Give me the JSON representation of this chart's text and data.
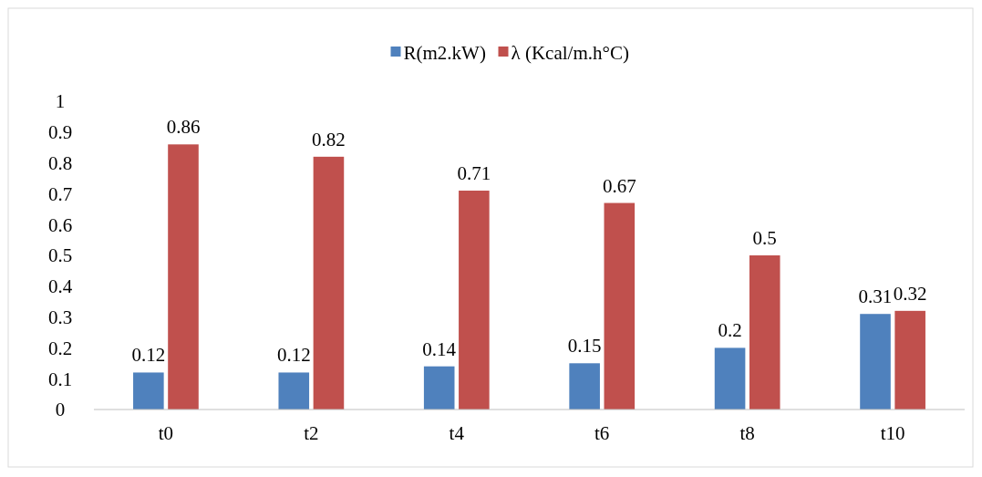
{
  "chart_data": {
    "type": "bar",
    "categories": [
      "t0",
      "t2",
      "t4",
      "t6",
      "t8",
      "t10"
    ],
    "series": [
      {
        "name": "R(m2.kW)",
        "color": "#4f81bd",
        "values": [
          0.12,
          0.12,
          0.14,
          0.15,
          0.2,
          0.31
        ]
      },
      {
        "name": "λ (Kcal/m.h°C)",
        "color": "#c0504d",
        "values": [
          0.86,
          0.82,
          0.71,
          0.67,
          0.5,
          0.32
        ]
      }
    ],
    "ylim": [
      0,
      1
    ],
    "yticks": [
      0,
      0.1,
      0.2,
      0.3,
      0.4,
      0.5,
      0.6,
      0.7,
      0.8,
      0.9,
      1
    ],
    "grid": false,
    "legend": "top",
    "data_labels": true
  }
}
